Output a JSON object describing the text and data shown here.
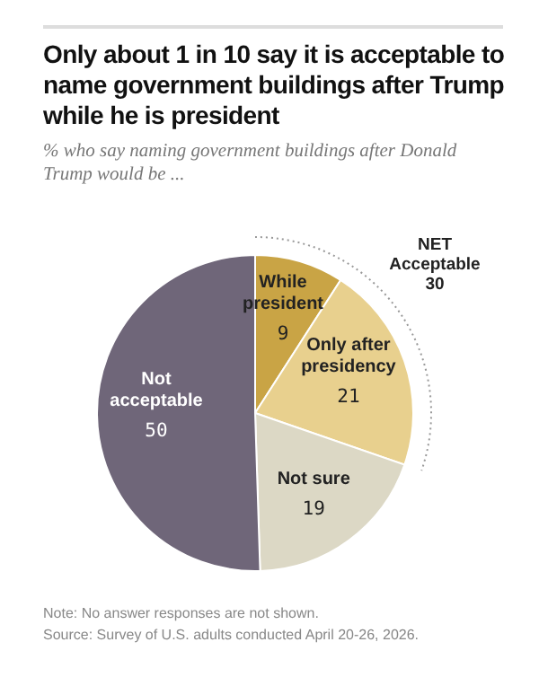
{
  "chart_data": {
    "type": "pie",
    "title": "Only about 1 in 10 say it is acceptable to name government buildings after Trump while he is president",
    "subtitle": "% who say naming government buildings after Donald Trump would be ...",
    "categories": [
      "While president",
      "Only after presidency",
      "Not sure",
      "Not acceptable"
    ],
    "values": [
      9,
      21,
      19,
      50
    ],
    "colors": [
      "#c9a445",
      "#e8d08e",
      "#dcd8c5",
      "#6f6679"
    ],
    "data_labels": true,
    "annotations": [
      "NET Acceptable 30",
      "Note: No answer responses are not shown.",
      "Source: Survey of U.S. adults conducted April 20-26, 2026."
    ]
  }
}
